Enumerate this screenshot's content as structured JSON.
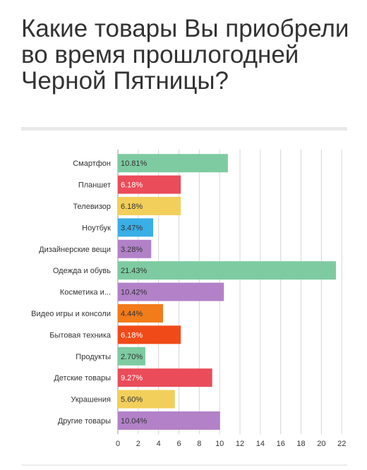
{
  "title": "Какие товары Вы приобрели во время прошлогодней Черной Пятницы?",
  "chart_data": {
    "type": "bar",
    "orientation": "horizontal",
    "categories": [
      "Смартфон",
      "Планшет",
      "Телевизор",
      "Ноутбук",
      "Дизайнерские вещи",
      "Одежда и обувь",
      "Косметика и...",
      "Видео игры и консоли",
      "Бытовая техника",
      "Продукты",
      "Детские товары",
      "Украшения",
      "Другие товары"
    ],
    "values": [
      10.81,
      6.18,
      6.18,
      3.47,
      3.28,
      21.43,
      10.42,
      4.44,
      6.18,
      2.7,
      9.27,
      5.6,
      10.04
    ],
    "labels": [
      "10.81%",
      "6.18%",
      "6.18%",
      "3.47%",
      "3.28%",
      "21.43%",
      "10.42%",
      "4.44%",
      "6.18%",
      "2.70%",
      "9.27%",
      "5.60%",
      "10.04%"
    ],
    "colors": [
      "#7ecba1",
      "#ea4c5a",
      "#f2cf5b",
      "#3aaee6",
      "#b281c8",
      "#7ecba1",
      "#b281c8",
      "#f27b1a",
      "#f04a18",
      "#7ecba1",
      "#ea4c5a",
      "#f2cf5b",
      "#b281c8"
    ],
    "label_colors": [
      "#333333",
      "#ffffff",
      "#333333",
      "#333333",
      "#333333",
      "#333333",
      "#333333",
      "#333333",
      "#ffffff",
      "#333333",
      "#ffffff",
      "#333333",
      "#333333"
    ],
    "xticks": [
      0,
      2,
      4,
      6,
      8,
      10,
      12,
      14,
      16,
      18,
      20,
      22
    ],
    "xlim": [
      0,
      22.4
    ],
    "grid": true,
    "legend": "none"
  }
}
